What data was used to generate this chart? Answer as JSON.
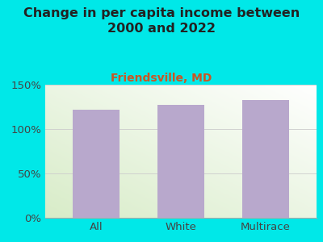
{
  "title": "Change in per capita income between\n2000 and 2022",
  "subtitle": "Friendsville, MD",
  "categories": [
    "All",
    "White",
    "Multirace"
  ],
  "values": [
    122,
    127,
    133
  ],
  "bar_color": "#b8a8cc",
  "background_color": "#00e8e8",
  "title_color": "#222222",
  "subtitle_color": "#cc5522",
  "axis_label_color": "#444444",
  "ylim": [
    0,
    150
  ],
  "yticks": [
    0,
    50,
    100,
    150
  ],
  "title_fontsize": 11.5,
  "subtitle_fontsize": 10,
  "tick_fontsize": 9.5,
  "bar_width": 0.55
}
